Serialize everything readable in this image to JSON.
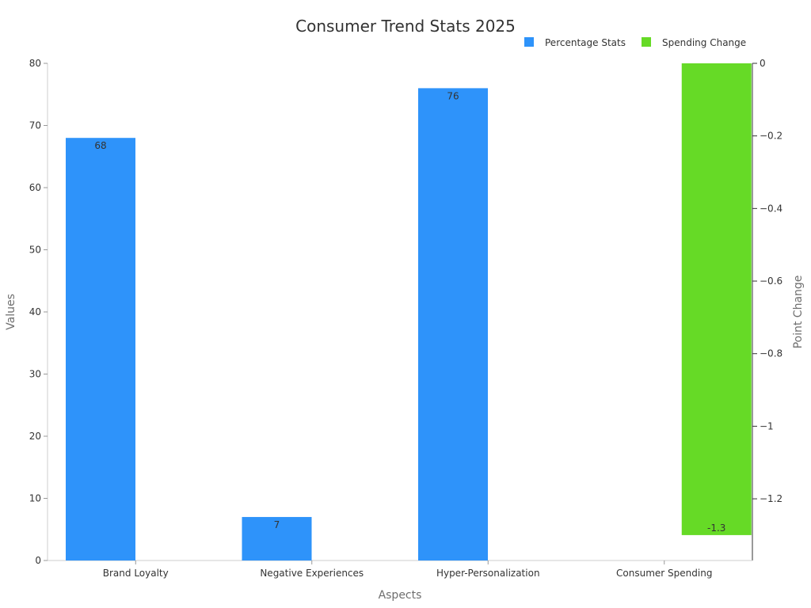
{
  "chart_data": {
    "type": "bar",
    "title": "Consumer Trend Stats 2025",
    "xlabel": "Aspects",
    "ylabel": "Values",
    "y2label": "Point Change",
    "categories": [
      "Brand Loyalty",
      "Negative Experiences",
      "Hyper-Personalization",
      "Consumer Spending"
    ],
    "series": [
      {
        "name": "Percentage Stats",
        "axis": "left",
        "color": "#2e93fa",
        "values": [
          68,
          7,
          76,
          null
        ],
        "labels": [
          "68",
          "7",
          "76",
          null
        ]
      },
      {
        "name": "Spending Change",
        "axis": "right",
        "color": "#66da26",
        "values": [
          null,
          null,
          null,
          -1.3
        ],
        "labels": [
          null,
          null,
          null,
          "-1.3"
        ]
      }
    ],
    "ylim": [
      0,
      80
    ],
    "yticks": [
      0,
      10,
      20,
      30,
      40,
      50,
      60,
      70,
      80
    ],
    "y2lim": [
      -1.37,
      0
    ],
    "y2ticks": [
      0,
      -0.2,
      -0.4,
      -0.6,
      -0.8,
      -1,
      -1.2
    ],
    "y2tick_labels": [
      "0",
      "−0.2",
      "−0.4",
      "−0.6",
      "−0.8",
      "−1",
      "−1.2"
    ],
    "legend_position": "top-right",
    "grid": false
  }
}
